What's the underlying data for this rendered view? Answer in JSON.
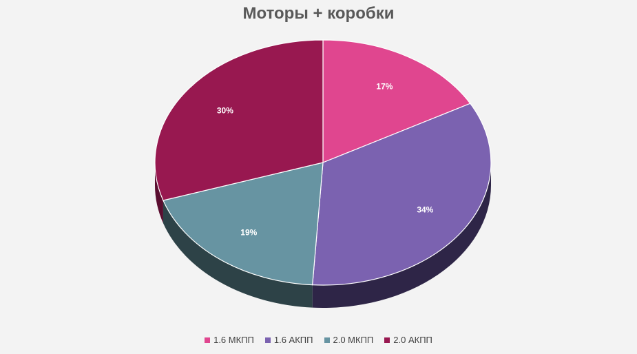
{
  "chart_data": {
    "type": "pie",
    "title": "Моторы + коробки",
    "categories": [
      "1.6 МКПП",
      "1.6 АКПП",
      "2.0 МКПП",
      "2.0 АКПП"
    ],
    "values": [
      17,
      34,
      19,
      30
    ],
    "data_labels": [
      "17%",
      "34%",
      "19%",
      "30%"
    ],
    "colors": [
      "#e0468f",
      "#7b62b0",
      "#6794a2",
      "#981850"
    ],
    "side_colors": [
      "#8a2a58",
      "#2e2547",
      "#2d4247",
      "#5a0e30"
    ],
    "legend_position": "bottom",
    "style": "3d"
  }
}
